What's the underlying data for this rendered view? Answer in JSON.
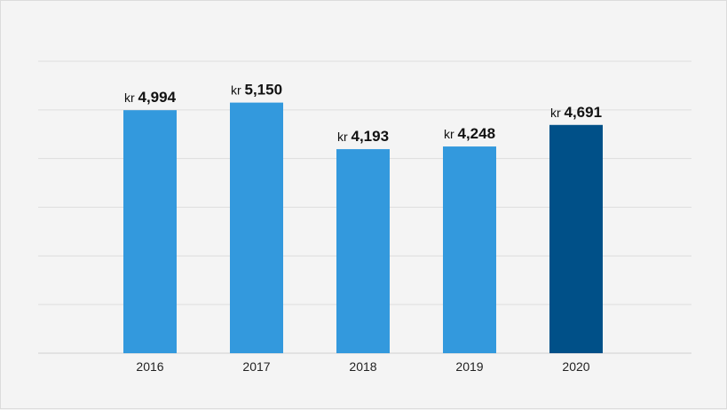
{
  "chart_data": {
    "type": "bar",
    "categories": [
      "2016",
      "2017",
      "2018",
      "2019",
      "2020"
    ],
    "values": [
      4994,
      5150,
      4193,
      4248,
      4691
    ],
    "data_labels": [
      {
        "prefix": "kr",
        "value": "4,994"
      },
      {
        "prefix": "kr",
        "value": "5,150"
      },
      {
        "prefix": "kr",
        "value": "4,193"
      },
      {
        "prefix": "kr",
        "value": "4,248"
      },
      {
        "prefix": "kr",
        "value": "4,691"
      }
    ],
    "title": "",
    "xlabel": "",
    "ylabel": "",
    "ylim": [
      0,
      6000
    ],
    "grid": true,
    "legend": "none",
    "colors": {
      "bar": "#3399dd",
      "highlight_bar": "#005088",
      "highlight_category": "2020",
      "grid": "#dedede",
      "background": "#f4f4f4"
    }
  }
}
